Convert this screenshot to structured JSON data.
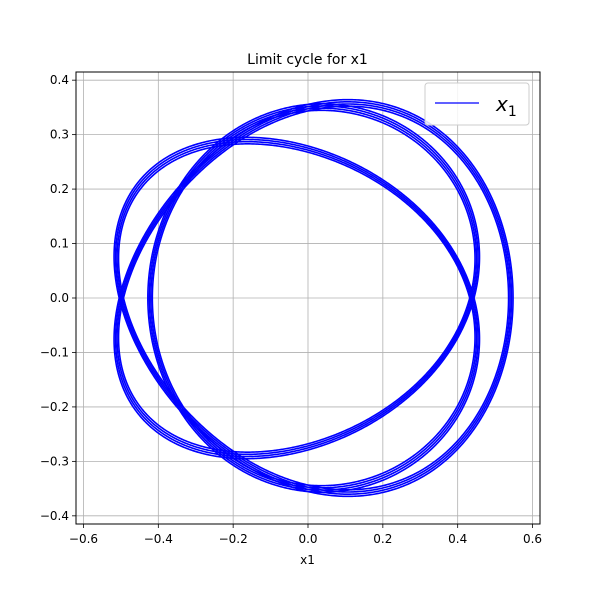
{
  "chart_data": {
    "type": "line",
    "title": "Limit cycle for x1",
    "xlabel": "x1",
    "ylabel": "",
    "xlim": [
      -0.62,
      0.62
    ],
    "ylim": [
      -0.415,
      0.415
    ],
    "xticks": [
      -0.6,
      -0.4,
      -0.2,
      0.0,
      0.2,
      0.4,
      0.6
    ],
    "xtick_labels": [
      "−0.6",
      "−0.4",
      "−0.2",
      "0.0",
      "0.2",
      "0.4",
      "0.6"
    ],
    "yticks": [
      -0.4,
      -0.3,
      -0.2,
      -0.1,
      0.0,
      0.1,
      0.2,
      0.3,
      0.4
    ],
    "ytick_labels": [
      "−0.4",
      "−0.3",
      "−0.2",
      "−0.1",
      "0.0",
      "0.1",
      "0.2",
      "0.3",
      "0.4"
    ],
    "grid": true,
    "legend_position": "top-right",
    "series": [
      {
        "name": "x₁",
        "name_base": "x",
        "name_sub": "1",
        "color": "#0000ff",
        "curve": "limit-cycle",
        "x_amplitude": [
          0.54,
          0.42
        ],
        "y_amplitude": [
          0.374,
          0.286
        ],
        "crossing_points": [
          [
            0.0,
            0.282
          ],
          [
            0.0,
            -0.282
          ]
        ],
        "lobe_peaks": [
          [
            -0.11,
            0.296
          ],
          [
            0.11,
            0.288
          ],
          [
            -0.11,
            -0.286
          ],
          [
            0.11,
            -0.295
          ]
        ]
      }
    ]
  }
}
